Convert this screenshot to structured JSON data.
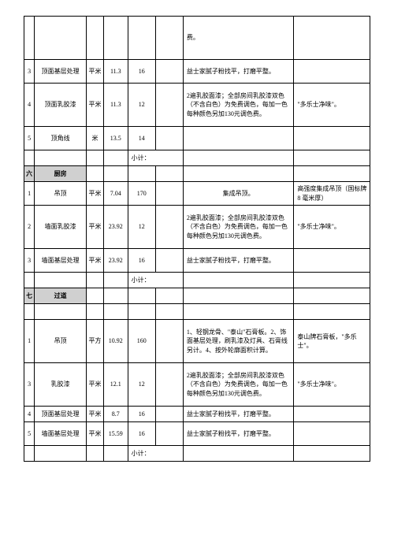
{
  "spill_row": {
    "desc": "费。"
  },
  "sec5_remaining": [
    {
      "idx": "3",
      "name": "顶面基层处理",
      "unit": "平米",
      "qty": "11.3",
      "price": "16",
      "desc": "益士家腻子粉找平，打磨平整。",
      "remark": ""
    },
    {
      "idx": "4",
      "name": "顶面乳胶漆",
      "unit": "平米",
      "qty": "11.3",
      "price": "12",
      "desc": "2遍乳胶面漆；全部房间乳胶漆双色（不含白色）为免费调色，每加一色每种颜色另加130元调色费。",
      "remark": "\"多乐士净味\"。"
    },
    {
      "idx": "5",
      "name": "顶角线",
      "unit": "米",
      "qty": "13.5",
      "price": "14",
      "desc": "",
      "remark": ""
    }
  ],
  "subtotal_label": "小计：",
  "sec6": {
    "idx": "六",
    "title": "厨房"
  },
  "sec6_rows": [
    {
      "idx": "1",
      "name": "吊顶",
      "unit": "平米",
      "qty": "7.04",
      "price": "170",
      "desc": "集成吊顶。",
      "remark": "高强度集成吊顶（国标牌 8 毫米厚）"
    },
    {
      "idx": "2",
      "name": "墙面乳胶漆",
      "unit": "平米",
      "qty": "23.92",
      "price": "12",
      "desc": "2遍乳胶面漆；全部房间乳胶漆双色（不含白色）为免费调色，每加一色每种颜色另加130元调色费。",
      "remark": "\"多乐士净味\"。"
    },
    {
      "idx": "3",
      "name": "墙面基层处理",
      "unit": "平米",
      "qty": "23.92",
      "price": "16",
      "desc": "益士家腻子粉找平，打磨平整。",
      "remark": ""
    }
  ],
  "sec7": {
    "idx": "七",
    "title": "过道"
  },
  "sec7_rows": [
    {
      "idx": "1",
      "name": "吊顶",
      "unit": "平方",
      "qty": "10.92",
      "price": "160",
      "desc": "1、轻钢龙骨、\"泰山\"石膏板。2、饰面基层处理，刷乳漆及灯具、石膏线另计。4、按外轮廓面积计算。",
      "remark": "泰山牌石膏板，\"多乐士\"。"
    },
    {
      "idx": "3",
      "name": "乳胶漆",
      "unit": "平米",
      "qty": "12.1",
      "price": "12",
      "desc": "2遍乳胶面漆；全部房间乳胶漆双色（不含白色）为免费调色，每加一色每种颜色另加130元调色费。",
      "remark": "\"多乐士净味\"。"
    },
    {
      "idx": "4",
      "name": "顶面基层处理",
      "unit": "平米",
      "qty": "8.7",
      "price": "16",
      "desc": "益士家腻子粉找平，打磨平整。",
      "remark": ""
    },
    {
      "idx": "5",
      "name": "墙面基层处理",
      "unit": "平米",
      "qty": "15.59",
      "price": "16",
      "desc": "益士家腻子粉找平，打磨平整。",
      "remark": ""
    }
  ]
}
